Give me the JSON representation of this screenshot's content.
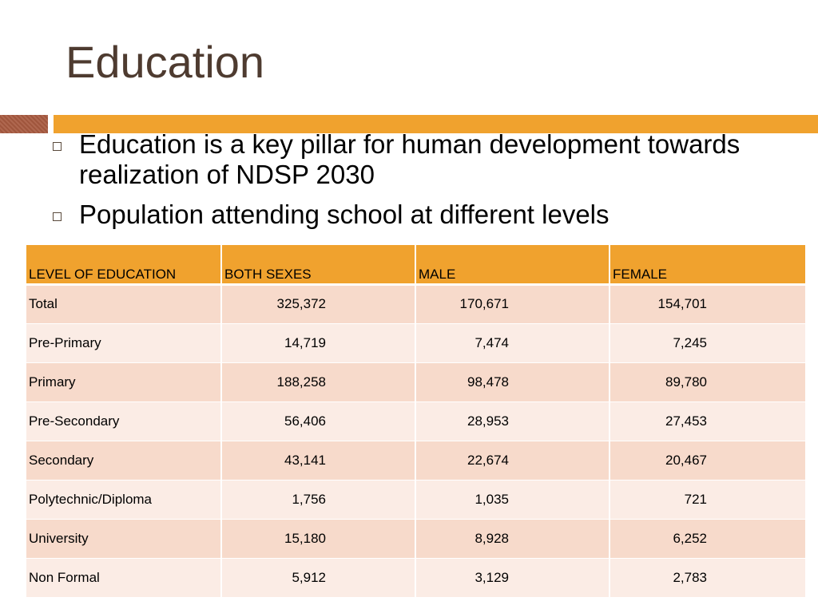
{
  "slide": {
    "title": "Education",
    "bullets": [
      "Education is a key pillar for human development towards realization of NDSP 2030",
      "Population attending school at different levels"
    ],
    "colors": {
      "title": "#4e3b30",
      "accent_orange": "#f0a22e",
      "accent_brown": "#a85a40",
      "row_dark": "#f7dacb",
      "row_light": "#fbece5"
    }
  },
  "table": {
    "headers": [
      "LEVEL OF EDUCATION",
      "BOTH SEXES",
      "MALE",
      "FEMALE"
    ],
    "rows": [
      {
        "level": "Total",
        "both": "325,372",
        "male": "170,671",
        "female": "154,701"
      },
      {
        "level": "Pre-Primary",
        "both": "14,719",
        "male": "7,474",
        "female": "7,245"
      },
      {
        "level": "Primary",
        "both": "188,258",
        "male": "98,478",
        "female": "89,780"
      },
      {
        "level": "Pre-Secondary",
        "both": "56,406",
        "male": "28,953",
        "female": "27,453"
      },
      {
        "level": "Secondary",
        "both": "43,141",
        "male": "22,674",
        "female": "20,467"
      },
      {
        "level": "Polytechnic/Diploma",
        "both": "1,756",
        "male": "1,035",
        "female": "721"
      },
      {
        "level": "University",
        "both": "15,180",
        "male": "8,928",
        "female": "6,252"
      },
      {
        "level": "Non Formal",
        "both": "5,912",
        "male": "3,129",
        "female": "2,783"
      }
    ]
  }
}
